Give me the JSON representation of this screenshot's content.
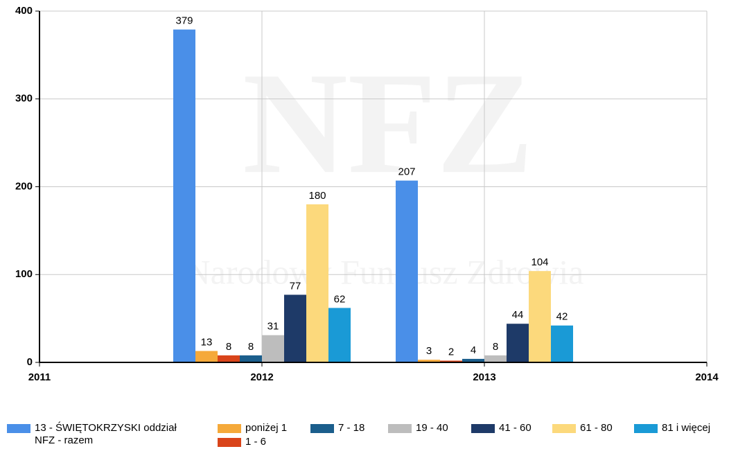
{
  "chart_data": {
    "type": "bar",
    "watermark": [
      "NFZ",
      "Narodowy Fundusz Zdrowia"
    ],
    "x": [
      2012,
      2013
    ],
    "xlim": [
      2011,
      2014
    ],
    "xticks": [
      2011,
      2012,
      2013,
      2014
    ],
    "ylim": [
      0,
      400
    ],
    "yticks": [
      0,
      100,
      200,
      300,
      400
    ],
    "grid": true,
    "legend": "bottom",
    "series": [
      {
        "name": "13 - ŚWIĘTOKRZYSKI oddział NFZ - razem",
        "color": "#4a8fe8",
        "values": [
          379,
          207
        ]
      },
      {
        "name": "poniżej 1",
        "color": "#f5a93a",
        "values": [
          13,
          3
        ]
      },
      {
        "name": "1 - 6",
        "color": "#d9441a",
        "values": [
          8,
          2
        ]
      },
      {
        "name": "7 - 18",
        "color": "#1b5e8c",
        "values": [
          8,
          4
        ]
      },
      {
        "name": "19 - 40",
        "color": "#bdbdbd",
        "values": [
          31,
          8
        ]
      },
      {
        "name": "41 - 60",
        "color": "#1e3a68",
        "values": [
          77,
          44
        ]
      },
      {
        "name": "61 - 80",
        "color": "#fcd97c",
        "values": [
          180,
          104
        ]
      },
      {
        "name": "81 i więcej",
        "color": "#1a9ad6",
        "values": [
          62,
          42
        ]
      }
    ]
  }
}
